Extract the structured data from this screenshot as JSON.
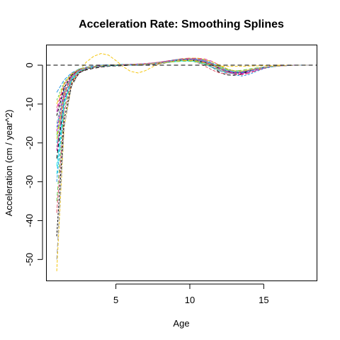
{
  "chart_data": {
    "type": "line",
    "title": "Acceleration Rate: Smoothing Splines",
    "xlabel": "Age",
    "ylabel": "Acceleration (cm / year^2)",
    "xlim": [
      0.3,
      18.6
    ],
    "ylim": [
      -55.5,
      5.2
    ],
    "x_ticks": [
      5,
      10,
      15
    ],
    "y_ticks": [
      0,
      -10,
      -20,
      -30,
      -40,
      -50
    ],
    "x_tick_labels": [
      "5",
      "10",
      "15"
    ],
    "y_tick_labels": [
      "0",
      "-10",
      "-20",
      "-30",
      "-40",
      "-50"
    ],
    "grid": false,
    "legend": "none",
    "reference_line": {
      "y": 0,
      "style": "dashed",
      "color": "#000000"
    },
    "line_style": "dashed",
    "palette": [
      "#000000",
      "#DF536B",
      "#61D04F",
      "#2297E6",
      "#28E2E5",
      "#CD0BBC",
      "#F5C710",
      "#9E9E9E"
    ],
    "ages": [
      1,
      1.5,
      2,
      2.5,
      3,
      3.5,
      4,
      4.5,
      5,
      5.5,
      6,
      6.5,
      7,
      7.5,
      8,
      8.5,
      9,
      9.5,
      10,
      10.5,
      11,
      11.5,
      12,
      12.5,
      13,
      13.5,
      14,
      14.5,
      15,
      15.5,
      16,
      16.5,
      17,
      17.5,
      18
    ],
    "series": [
      {
        "values": [
          -24.0,
          -9.0,
          -4.0,
          -2.0,
          -1.2,
          -0.8,
          -0.5,
          -0.3,
          -0.2,
          -0.1,
          0.0,
          0.0,
          0.1,
          0.2,
          0.4,
          0.7,
          1.0,
          1.2,
          1.4,
          1.3,
          0.8,
          -0.5,
          -1.8,
          -2.5,
          -2.6,
          -2.2,
          -1.6,
          -1.0,
          -0.6,
          -0.4,
          -0.2,
          -0.1,
          0.0,
          0.0,
          0.0
        ]
      },
      {
        "values": [
          -22.0,
          -8.0,
          -3.5,
          -1.8,
          -1.0,
          -0.6,
          -0.4,
          -0.2,
          -0.1,
          0.0,
          0.0,
          0.1,
          0.2,
          0.3,
          0.5,
          0.8,
          1.1,
          1.3,
          1.2,
          0.7,
          -0.2,
          -1.2,
          -2.0,
          -2.2,
          -2.0,
          -1.6,
          -1.2,
          -0.8,
          -0.5,
          -0.3,
          -0.2,
          -0.1,
          0.0,
          0.0,
          0.0
        ]
      },
      {
        "values": [
          -18.0,
          -7.0,
          -3.0,
          -1.5,
          -0.9,
          -0.5,
          -0.3,
          -0.1,
          0.0,
          0.0,
          0.1,
          0.1,
          0.2,
          0.4,
          0.6,
          0.9,
          1.2,
          1.4,
          1.5,
          1.4,
          1.0,
          0.1,
          -1.0,
          -1.8,
          -2.2,
          -2.0,
          -1.5,
          -1.0,
          -0.6,
          -0.3,
          -0.2,
          -0.1,
          0.0,
          0.0,
          0.0
        ]
      },
      {
        "values": [
          -16.0,
          -6.0,
          -2.5,
          -1.2,
          -0.7,
          -0.4,
          -0.2,
          -0.1,
          0.0,
          0.1,
          0.1,
          0.2,
          0.3,
          0.5,
          0.7,
          1.0,
          1.3,
          1.5,
          1.6,
          1.6,
          1.3,
          0.6,
          -0.4,
          -1.5,
          -2.4,
          -2.8,
          -2.4,
          -1.6,
          -0.9,
          -0.5,
          -0.2,
          -0.1,
          0.0,
          0.0,
          0.0
        ]
      },
      {
        "values": [
          -20.0,
          -7.5,
          -3.2,
          -1.6,
          -0.9,
          -0.5,
          -0.3,
          -0.2,
          -0.1,
          0.0,
          0.0,
          0.1,
          0.2,
          0.3,
          0.5,
          0.7,
          0.9,
          1.1,
          1.1,
          0.8,
          0.2,
          -0.6,
          -1.4,
          -1.9,
          -2.0,
          -1.7,
          -1.3,
          -0.9,
          -0.6,
          -0.4,
          -0.2,
          -0.1,
          0.0,
          0.0,
          0.0
        ]
      },
      {
        "values": [
          -12.0,
          -5.0,
          -2.2,
          -1.1,
          -0.6,
          -0.3,
          -0.1,
          0.0,
          0.1,
          0.1,
          0.2,
          0.2,
          0.3,
          0.4,
          0.6,
          0.9,
          1.2,
          1.5,
          1.7,
          1.8,
          1.6,
          1.0,
          0.0,
          -1.0,
          -1.8,
          -2.1,
          -1.9,
          -1.4,
          -0.8,
          -0.4,
          -0.2,
          -0.1,
          0.0,
          0.0,
          0.0
        ]
      },
      {
        "values": [
          -53.0,
          -16.0,
          -5.0,
          -1.5,
          0.8,
          2.3,
          3.0,
          2.6,
          1.2,
          -0.4,
          -1.6,
          -2.0,
          -1.4,
          -0.4,
          0.4,
          0.9,
          1.2,
          1.3,
          1.2,
          0.9,
          0.5,
          0.1,
          -0.2,
          -0.3,
          -0.3,
          -0.3,
          -0.2,
          -0.2,
          -0.1,
          -0.1,
          0.0,
          0.0,
          0.0,
          0.0,
          0.0
        ]
      },
      {
        "values": [
          -50.0,
          -16.0,
          -5.5,
          -2.2,
          -1.0,
          -0.5,
          -0.3,
          -0.2,
          -0.1,
          0.0,
          0.1,
          0.2,
          0.3,
          0.5,
          0.7,
          1.0,
          1.2,
          1.3,
          1.2,
          0.9,
          0.3,
          -0.5,
          -1.3,
          -1.8,
          -1.9,
          -1.6,
          -1.2,
          -0.8,
          -0.5,
          -0.3,
          -0.2,
          -0.1,
          0.0,
          0.0,
          0.0
        ]
      },
      {
        "values": [
          -44.0,
          -14.0,
          -5.0,
          -2.0,
          -0.9,
          -0.5,
          -0.3,
          -0.1,
          0.0,
          0.1,
          0.1,
          0.2,
          0.3,
          0.4,
          0.6,
          0.8,
          1.0,
          1.2,
          1.3,
          1.2,
          0.9,
          0.3,
          -0.5,
          -1.3,
          -1.8,
          -1.9,
          -1.6,
          -1.1,
          -0.7,
          -0.4,
          -0.2,
          -0.1,
          0.0,
          0.0,
          0.0
        ]
      },
      {
        "values": [
          -38.0,
          -12.0,
          -4.5,
          -1.8,
          -0.8,
          -0.4,
          -0.2,
          -0.1,
          0.0,
          0.1,
          0.2,
          0.3,
          0.4,
          0.6,
          0.8,
          1.1,
          1.4,
          1.6,
          1.7,
          1.5,
          1.0,
          0.2,
          -0.8,
          -1.6,
          -2.0,
          -1.9,
          -1.5,
          -1.0,
          -0.6,
          -0.3,
          -0.2,
          -0.1,
          0.0,
          0.0,
          0.0
        ]
      },
      {
        "values": [
          -35.0,
          -11.0,
          -4.0,
          -1.7,
          -0.8,
          -0.4,
          -0.2,
          -0.1,
          0.0,
          0.1,
          0.1,
          0.2,
          0.3,
          0.4,
          0.5,
          0.7,
          0.9,
          1.0,
          1.0,
          0.8,
          0.3,
          -0.4,
          -1.0,
          -1.4,
          -1.5,
          -1.3,
          -1.0,
          -0.7,
          -0.5,
          -0.3,
          -0.2,
          -0.1,
          0.0,
          0.0,
          0.0
        ]
      },
      {
        "values": [
          -30.0,
          -10.0,
          -3.8,
          -1.6,
          -0.8,
          -0.4,
          -0.2,
          -0.1,
          0.0,
          0.0,
          0.1,
          0.2,
          0.3,
          0.5,
          0.8,
          1.1,
          1.4,
          1.6,
          1.6,
          1.3,
          0.6,
          -0.4,
          -1.4,
          -2.0,
          -2.1,
          -1.8,
          -1.3,
          -0.9,
          -0.5,
          -0.3,
          -0.2,
          -0.1,
          0.0,
          0.0,
          0.0
        ]
      },
      {
        "values": [
          -26.0,
          -9.5,
          -3.6,
          -1.5,
          -0.7,
          -0.3,
          -0.1,
          0.0,
          0.1,
          0.1,
          0.2,
          0.2,
          0.3,
          0.4,
          0.6,
          0.9,
          1.1,
          1.3,
          1.4,
          1.3,
          1.0,
          0.4,
          -0.4,
          -1.1,
          -1.6,
          -1.7,
          -1.5,
          -1.1,
          -0.7,
          -0.4,
          -0.2,
          -0.1,
          0.0,
          0.0,
          0.0
        ]
      },
      {
        "values": [
          -22.0,
          -8.5,
          -3.3,
          -1.4,
          -0.7,
          -0.4,
          -0.2,
          -0.1,
          0.0,
          0.0,
          0.1,
          0.1,
          0.2,
          0.3,
          0.5,
          0.8,
          1.1,
          1.4,
          1.6,
          1.5,
          1.1,
          0.3,
          -0.7,
          -1.6,
          -2.2,
          -2.3,
          -1.9,
          -1.3,
          -0.8,
          -0.4,
          -0.2,
          -0.1,
          0.0,
          0.0,
          0.0
        ]
      },
      {
        "values": [
          -19.0,
          -7.5,
          -3.0,
          -1.3,
          -0.6,
          -0.3,
          -0.1,
          0.0,
          0.1,
          0.2,
          0.2,
          0.3,
          0.4,
          0.5,
          0.7,
          1.0,
          1.3,
          1.6,
          1.8,
          1.8,
          1.5,
          0.9,
          0.0,
          -0.9,
          -1.5,
          -1.7,
          -1.5,
          -1.1,
          -0.7,
          -0.4,
          -0.2,
          -0.1,
          0.0,
          0.0,
          0.0
        ]
      },
      {
        "values": [
          -15.0,
          -6.5,
          -2.8,
          -1.3,
          -0.7,
          -0.4,
          -0.2,
          -0.1,
          0.0,
          0.0,
          0.1,
          0.1,
          0.2,
          0.4,
          0.6,
          0.9,
          1.2,
          1.4,
          1.4,
          1.1,
          0.5,
          -0.4,
          -1.3,
          -1.9,
          -2.0,
          -1.7,
          -1.3,
          -0.9,
          -0.5,
          -0.3,
          -0.2,
          -0.1,
          0.0,
          0.0,
          0.0
        ]
      },
      {
        "values": [
          -13.0,
          -5.8,
          -2.6,
          -1.2,
          -0.6,
          -0.3,
          -0.2,
          -0.1,
          0.0,
          0.1,
          0.1,
          0.2,
          0.3,
          0.5,
          0.7,
          0.9,
          1.1,
          1.3,
          1.3,
          1.1,
          0.7,
          0.0,
          -0.8,
          -1.5,
          -1.9,
          -1.9,
          -1.5,
          -1.0,
          -0.6,
          -0.3,
          -0.2,
          -0.1,
          0.0,
          0.0,
          0.0
        ]
      },
      {
        "values": [
          -11.0,
          -5.0,
          -2.4,
          -1.1,
          -0.6,
          -0.3,
          -0.1,
          0.0,
          0.1,
          0.1,
          0.2,
          0.3,
          0.4,
          0.6,
          0.8,
          1.1,
          1.4,
          1.7,
          1.8,
          1.7,
          1.3,
          0.5,
          -0.6,
          -1.6,
          -2.3,
          -2.5,
          -2.1,
          -1.4,
          -0.8,
          -0.4,
          -0.2,
          -0.1,
          0.0,
          0.0,
          0.0
        ]
      },
      {
        "values": [
          -9.0,
          -4.4,
          -2.2,
          -1.0,
          -0.5,
          -0.3,
          -0.1,
          0.0,
          0.1,
          0.1,
          0.2,
          0.2,
          0.3,
          0.4,
          0.6,
          0.8,
          1.0,
          1.2,
          1.3,
          1.2,
          0.9,
          0.4,
          -0.3,
          -1.0,
          -1.4,
          -1.5,
          -1.3,
          -0.9,
          -0.6,
          -0.3,
          -0.2,
          -0.1,
          0.0,
          0.0,
          0.0
        ]
      },
      {
        "values": [
          -7.0,
          -3.8,
          -2.0,
          -1.0,
          -0.5,
          -0.2,
          0.0,
          0.1,
          0.1,
          0.2,
          0.2,
          0.3,
          0.4,
          0.5,
          0.7,
          1.0,
          1.3,
          1.5,
          1.6,
          1.5,
          1.1,
          0.4,
          -0.5,
          -1.3,
          -1.8,
          -1.9,
          -1.6,
          -1.1,
          -0.7,
          -0.4,
          -0.2,
          -0.1,
          0.0,
          0.0,
          0.0
        ]
      },
      {
        "values": [
          -28.0,
          -9.8,
          -3.6,
          -1.5,
          -0.7,
          -0.4,
          -0.2,
          -0.1,
          0.0,
          0.1,
          0.1,
          0.2,
          0.3,
          0.4,
          0.6,
          0.8,
          1.0,
          1.1,
          1.1,
          0.9,
          0.5,
          -0.1,
          -0.8,
          -1.4,
          -1.7,
          -1.7,
          -1.4,
          -1.0,
          -0.6,
          -0.4,
          -0.2,
          -0.1,
          0.0,
          0.0,
          0.0
        ]
      },
      {
        "values": [
          -17.0,
          -7.0,
          -2.9,
          -1.3,
          -0.6,
          -0.3,
          -0.1,
          0.0,
          0.1,
          0.1,
          0.2,
          0.3,
          0.4,
          0.5,
          0.7,
          1.0,
          1.2,
          1.4,
          1.5,
          1.3,
          0.8,
          0.0,
          -0.9,
          -1.6,
          -1.9,
          -1.8,
          -1.4,
          -1.0,
          -0.6,
          -0.3,
          -0.2,
          -0.1,
          0.0,
          0.0,
          0.0
        ]
      },
      {
        "values": [
          -10.0,
          -4.8,
          -2.3,
          -1.1,
          -0.6,
          -0.3,
          -0.1,
          0.0,
          0.1,
          0.1,
          0.1,
          0.2,
          0.3,
          0.4,
          0.6,
          0.8,
          1.0,
          1.2,
          1.2,
          1.0,
          0.6,
          0.0,
          -0.6,
          -1.2,
          -1.5,
          -1.5,
          -1.2,
          -0.9,
          -0.6,
          -0.3,
          -0.2,
          -0.1,
          0.0,
          0.0,
          0.0
        ]
      },
      {
        "values": [
          -21.0,
          -8.0,
          -3.2,
          -1.4,
          -0.7,
          -0.3,
          -0.1,
          0.0,
          0.1,
          0.1,
          0.2,
          0.2,
          0.3,
          0.5,
          0.7,
          0.9,
          1.2,
          1.4,
          1.5,
          1.4,
          1.0,
          0.3,
          -0.5,
          -1.2,
          -1.6,
          -1.6,
          -1.3,
          -0.9,
          -0.6,
          -0.3,
          -0.2,
          -0.1,
          0.0,
          0.0,
          0.0
        ]
      }
    ]
  }
}
